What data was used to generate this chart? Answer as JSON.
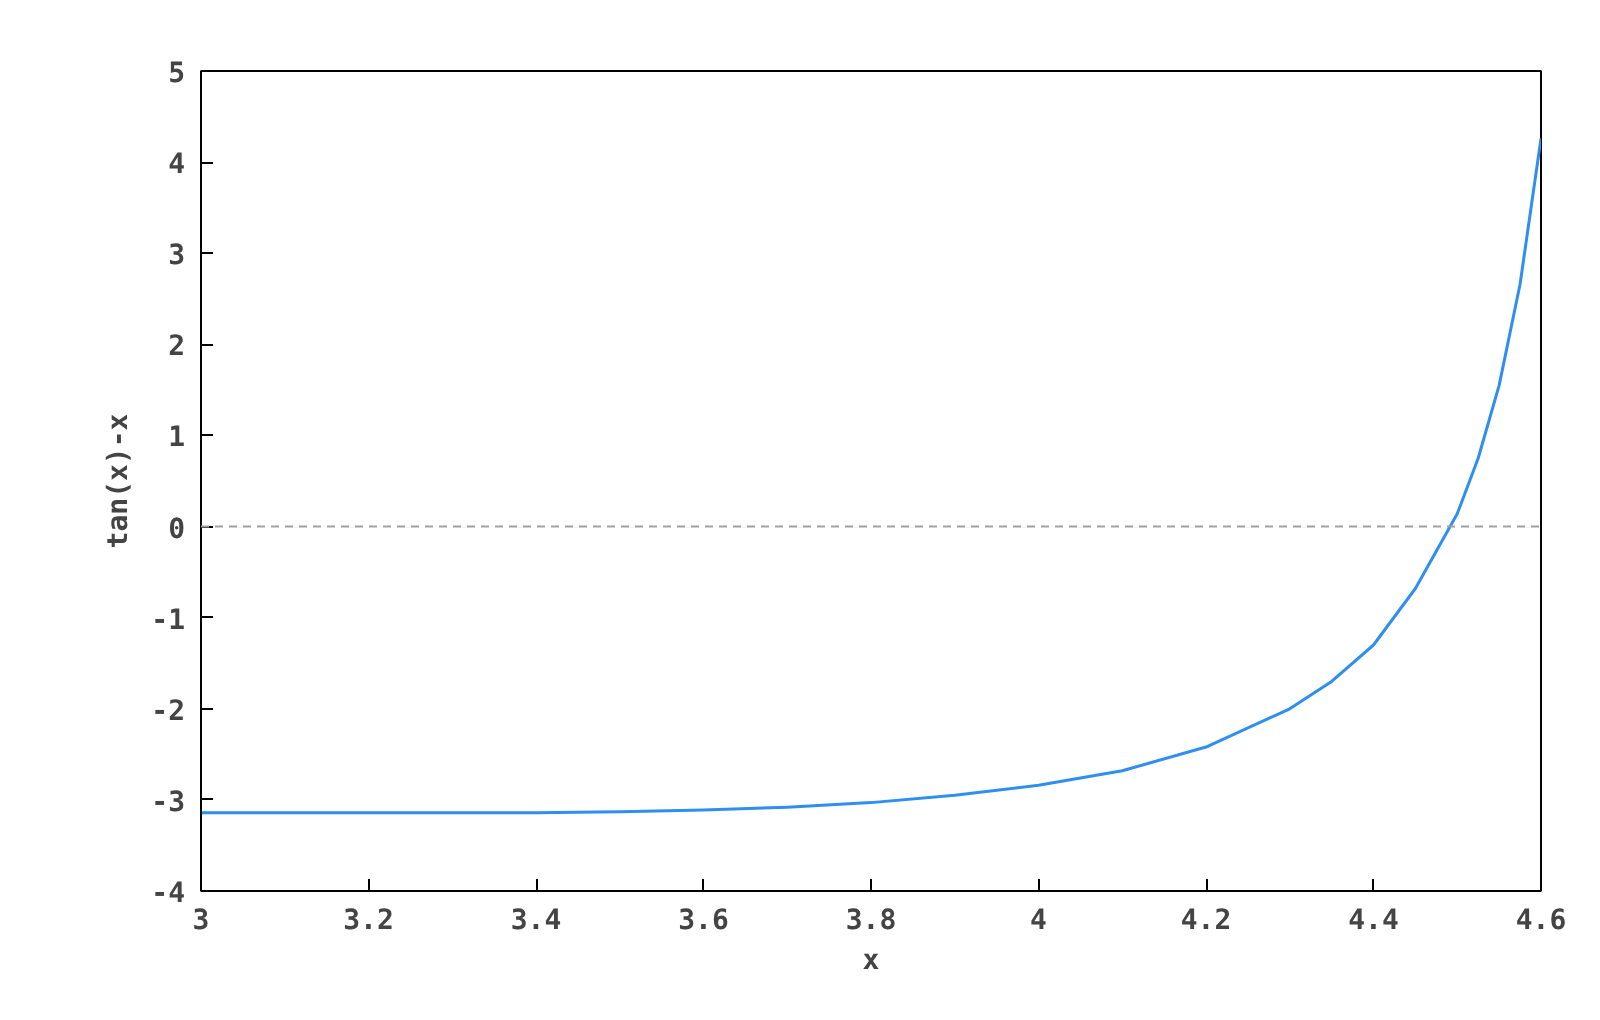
{
  "chart_data": {
    "type": "line",
    "xlabel": "x",
    "ylabel": "tan(x)-x",
    "x": [
      3.0,
      3.1,
      3.2,
      3.3,
      3.4,
      3.5,
      3.6,
      3.7,
      3.8,
      3.9,
      4.0,
      4.1,
      4.2,
      4.3,
      4.35,
      4.4,
      4.45,
      4.5,
      4.525,
      4.55,
      4.575,
      4.6
    ],
    "series": [
      {
        "color": "#2f8ff0",
        "values": [
          -3.14,
          -3.14,
          -3.14,
          -3.14,
          -3.14,
          -3.13,
          -3.11,
          -3.08,
          -3.03,
          -2.95,
          -2.84,
          -2.68,
          -2.42,
          -2.0,
          -1.7,
          -1.3,
          -0.68,
          0.14,
          0.75,
          1.55,
          2.66,
          4.26
        ]
      }
    ],
    "xlim": [
      3,
      4.6
    ],
    "xticks": [
      3,
      {
        "value": 3.2,
        "label": "3.2"
      },
      {
        "value": 3.4,
        "label": "3.4"
      },
      {
        "value": 3.6,
        "label": "3.6"
      },
      {
        "value": 3.8,
        "label": "3.8"
      },
      4,
      {
        "value": 4.2,
        "label": "4.2"
      },
      {
        "value": 4.4,
        "label": "4.4"
      },
      {
        "value": 4.6,
        "label": "4.6"
      }
    ],
    "ylim": [
      -4,
      5
    ],
    "yticks": [
      -4,
      -3,
      -2,
      -1,
      0,
      1,
      2,
      3,
      4,
      5
    ],
    "ref_lines": [
      {
        "axis": "y",
        "value": 0,
        "color": "#a0a0a0",
        "line_style": "dashed"
      }
    ],
    "grid": false
  }
}
